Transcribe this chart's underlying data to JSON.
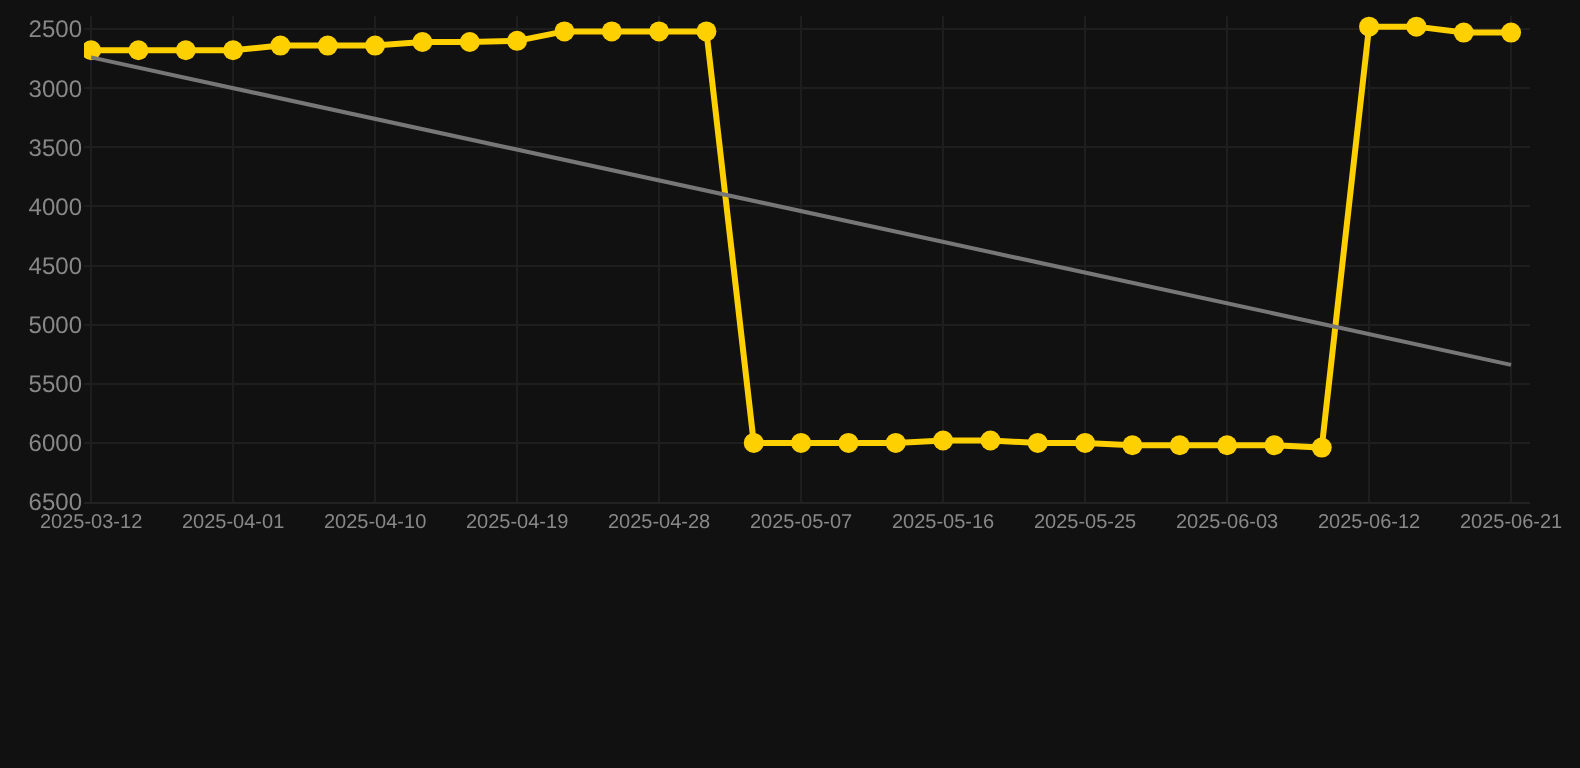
{
  "chart_data": {
    "type": "line",
    "categories": [
      "2025-03-12",
      null,
      null,
      "2025-04-01",
      null,
      null,
      "2025-04-10",
      null,
      null,
      "2025-04-19",
      null,
      null,
      "2025-04-28",
      null,
      null,
      "2025-05-07",
      null,
      null,
      "2025-05-16",
      null,
      null,
      "2025-05-25",
      null,
      null,
      "2025-06-03",
      null,
      null,
      "2025-06-12",
      null,
      null,
      "2025-06-21"
    ],
    "series": [
      {
        "color": "#ffd000",
        "marker": "circle",
        "values": [
          2680,
          2680,
          2680,
          2680,
          2640,
          2640,
          2640,
          2610,
          2610,
          2600,
          2520,
          2520,
          2520,
          2520,
          6000,
          6000,
          6000,
          6000,
          5980,
          5980,
          6000,
          6000,
          6020,
          6020,
          6020,
          6020,
          6040,
          2480,
          2480,
          2530,
          2530
        ]
      },
      {
        "type": "line",
        "color": "#777777",
        "marker": "none",
        "values": [
          2740,
          null,
          null,
          null,
          null,
          null,
          null,
          null,
          null,
          null,
          null,
          null,
          null,
          null,
          null,
          null,
          null,
          null,
          null,
          null,
          null,
          null,
          null,
          null,
          null,
          null,
          null,
          null,
          null,
          null,
          5340
        ]
      }
    ],
    "ylim": [
      6500,
      2390
    ],
    "yticks": [
      2500,
      3000,
      3500,
      4000,
      4500,
      5000,
      5500,
      6000,
      6500
    ],
    "grid": true
  }
}
